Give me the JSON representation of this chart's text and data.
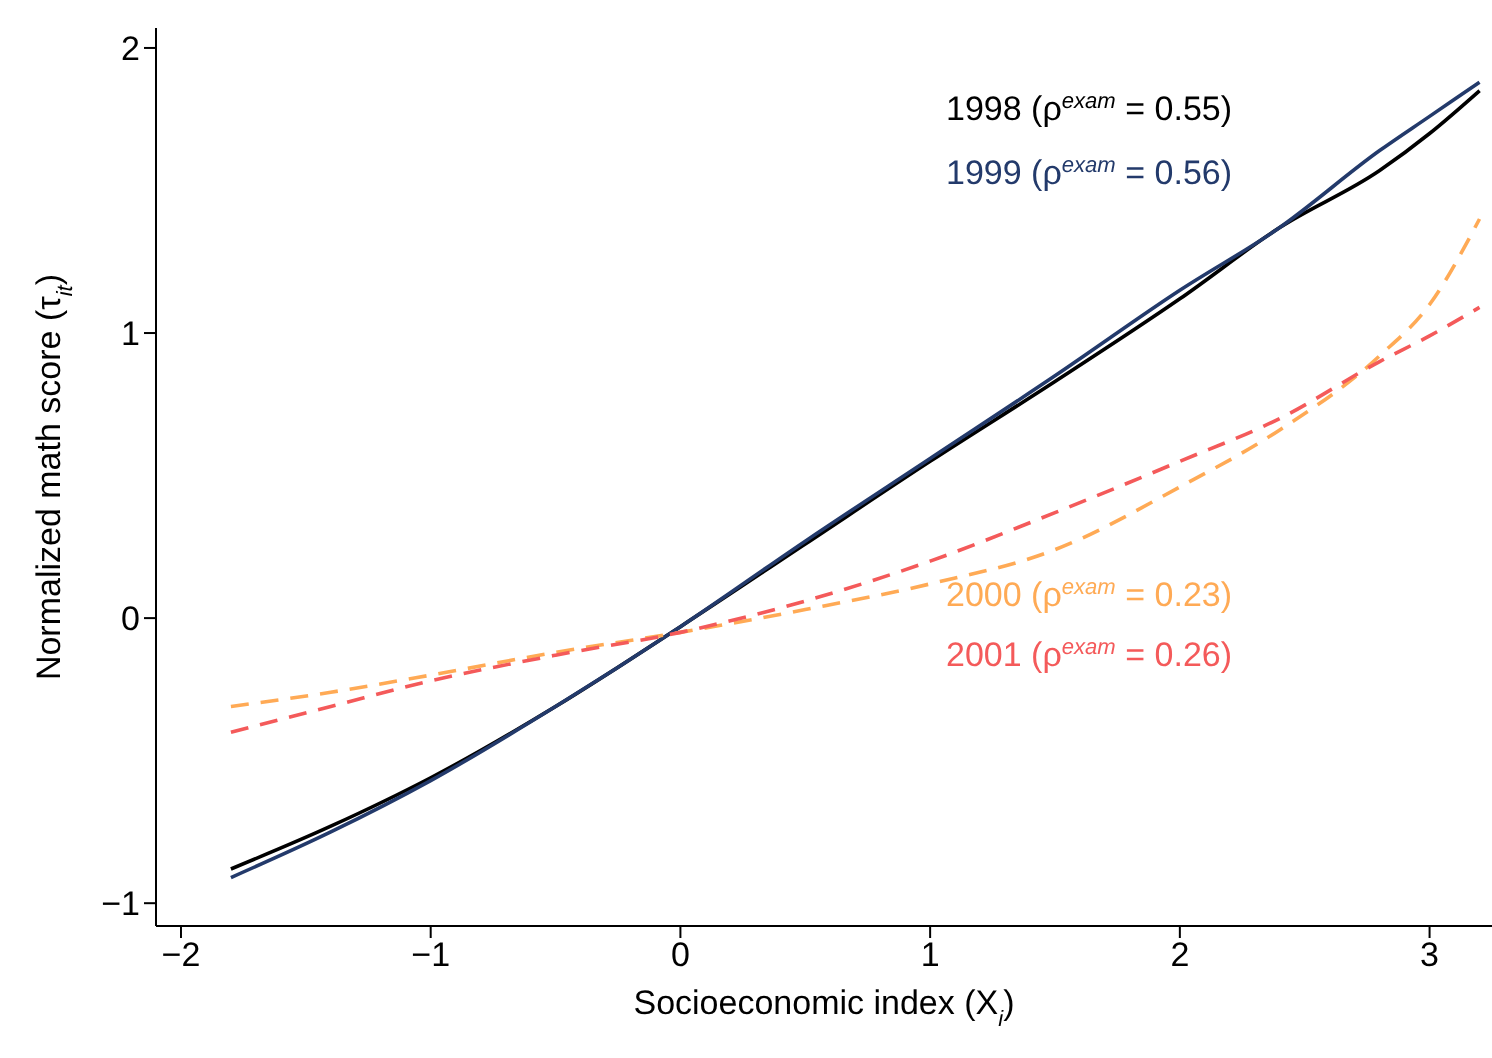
{
  "chart_data": {
    "type": "line",
    "xlabel": "Socioeconomic index (X$_{i}$)",
    "ylabel": "Normalized math score (τ$_{it}$)",
    "x": [
      -1.8,
      -1.4,
      -1,
      -0.5,
      0,
      0.5,
      1,
      1.5,
      2,
      2.4,
      2.8,
      3.0,
      3.2
    ],
    "series": [
      {
        "name": "1998 (ρ$^{exam}$ = 0.55)",
        "color": "#000000",
        "line_style": "solid",
        "values": [
          -0.88,
          -0.73,
          -0.56,
          -0.31,
          -0.03,
          0.26,
          0.55,
          0.83,
          1.12,
          1.37,
          1.57,
          1.7,
          1.85
        ]
      },
      {
        "name": "1999 (ρ$^{exam}$ = 0.56)",
        "color": "#233a6b",
        "line_style": "solid",
        "values": [
          -0.91,
          -0.75,
          -0.57,
          -0.31,
          -0.03,
          0.27,
          0.56,
          0.85,
          1.15,
          1.37,
          1.64,
          1.76,
          1.88
        ]
      },
      {
        "name": "2000 (ρ$^{exam}$ = 0.23)",
        "color": "#ffaa55",
        "line_style": "dashed",
        "values": [
          -0.31,
          -0.26,
          -0.2,
          -0.12,
          -0.05,
          0.03,
          0.12,
          0.24,
          0.46,
          0.66,
          0.92,
          1.1,
          1.4
        ]
      },
      {
        "name": "2001 (ρ$^{exam}$ = 0.26)",
        "color": "#f45a5a",
        "line_style": "dashed",
        "values": [
          -0.4,
          -0.31,
          -0.22,
          -0.13,
          -0.05,
          0.06,
          0.2,
          0.37,
          0.55,
          0.7,
          0.9,
          0.99,
          1.09
        ]
      }
    ],
    "xlim": [
      -2.1,
      3.25
    ],
    "xticks": [
      {
        "value": -2,
        "label": "−2"
      },
      {
        "value": -1,
        "label": "−1"
      },
      0,
      1,
      2,
      3
    ],
    "ylim": [
      -1.08,
      2.07
    ],
    "yticks": [
      {
        "value": -1,
        "label": "−1"
      },
      0,
      1,
      2
    ],
    "marker": "none"
  }
}
